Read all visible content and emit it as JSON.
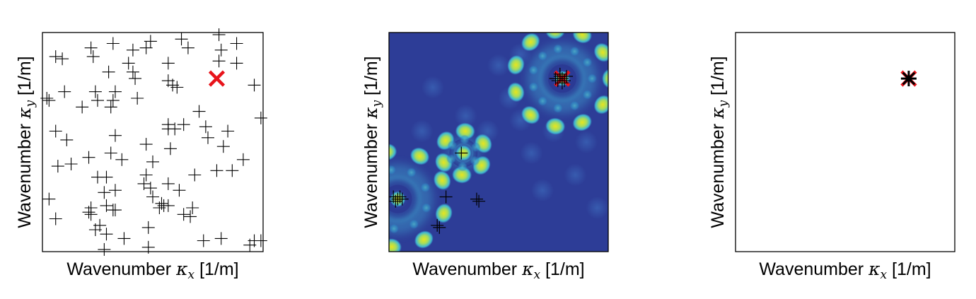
{
  "chart_data": [
    {
      "type": "scatter",
      "xlabel": "Wavenumber κx [1/m]",
      "ylabel": "Wavenumber κy [1/m]",
      "xlabel_parts": {
        "pre": "Wavenumber ",
        "sym": "κ",
        "sub": "x",
        "post": " [1/m]"
      },
      "ylabel_parts": {
        "pre": "Wavenumber ",
        "sym": "κ",
        "sub": "y",
        "post": " [1/m]"
      },
      "xlim": [
        0,
        1
      ],
      "ylim": [
        0,
        1
      ],
      "background": "#ffffff",
      "grid": false,
      "markers": {
        "estimates": {
          "symbol": "plus",
          "color": "#000000"
        },
        "truth": {
          "symbol": "x",
          "color": "#e8141b"
        }
      },
      "truth": [
        {
          "x": 0.79,
          "y": 0.79
        }
      ],
      "estimates": [
        [
          0.06,
          0.89
        ],
        [
          0.09,
          0.88
        ],
        [
          0.22,
          0.93
        ],
        [
          0.23,
          0.89
        ],
        [
          0.32,
          0.95
        ],
        [
          0.41,
          0.92
        ],
        [
          0.47,
          0.93
        ],
        [
          0.49,
          0.96
        ],
        [
          0.63,
          0.97
        ],
        [
          0.66,
          0.93
        ],
        [
          0.8,
          0.99
        ],
        [
          0.81,
          0.92
        ],
        [
          0.88,
          0.95
        ],
        [
          0.8,
          0.87
        ],
        [
          0.88,
          0.86
        ],
        [
          0.39,
          0.86
        ],
        [
          0.41,
          0.82
        ],
        [
          0.42,
          0.79
        ],
        [
          0.57,
          0.86
        ],
        [
          0.57,
          0.78
        ],
        [
          0.59,
          0.76
        ],
        [
          0.61,
          0.75
        ],
        [
          0.96,
          0.76
        ],
        [
          0.3,
          0.82
        ],
        [
          0.24,
          0.73
        ],
        [
          0.33,
          0.73
        ],
        [
          0.25,
          0.69
        ],
        [
          0.32,
          0.69
        ],
        [
          0.43,
          0.7
        ],
        [
          0.1,
          0.73
        ],
        [
          0.03,
          0.69
        ],
        [
          0.02,
          0.7
        ],
        [
          0.18,
          0.66
        ],
        [
          0.31,
          0.66
        ],
        [
          0.71,
          0.64
        ],
        [
          0.99,
          0.61
        ],
        [
          0.57,
          0.58
        ],
        [
          0.57,
          0.56
        ],
        [
          0.6,
          0.56
        ],
        [
          0.64,
          0.58
        ],
        [
          0.74,
          0.57
        ],
        [
          0.06,
          0.55
        ],
        [
          0.11,
          0.51
        ],
        [
          0.33,
          0.53
        ],
        [
          0.47,
          0.49
        ],
        [
          0.58,
          0.47
        ],
        [
          0.84,
          0.55
        ],
        [
          0.75,
          0.52
        ],
        [
          0.82,
          0.48
        ],
        [
          0.31,
          0.45
        ],
        [
          0.21,
          0.43
        ],
        [
          0.36,
          0.42
        ],
        [
          0.5,
          0.41
        ],
        [
          0.13,
          0.4
        ],
        [
          0.07,
          0.39
        ],
        [
          0.91,
          0.42
        ],
        [
          0.86,
          0.37
        ],
        [
          0.79,
          0.37
        ],
        [
          0.69,
          0.35
        ],
        [
          0.25,
          0.34
        ],
        [
          0.29,
          0.34
        ],
        [
          0.47,
          0.35
        ],
        [
          0.46,
          0.31
        ],
        [
          0.49,
          0.29
        ],
        [
          0.28,
          0.27
        ],
        [
          0.33,
          0.28
        ],
        [
          0.57,
          0.31
        ],
        [
          0.62,
          0.28
        ],
        [
          0.5,
          0.25
        ],
        [
          0.54,
          0.22
        ],
        [
          0.53,
          0.2
        ],
        [
          0.55,
          0.21
        ],
        [
          0.57,
          0.21
        ],
        [
          0.68,
          0.2
        ],
        [
          0.22,
          0.17
        ],
        [
          0.33,
          0.19
        ],
        [
          0.22,
          0.2
        ],
        [
          0.03,
          0.24
        ],
        [
          0.21,
          0.18
        ],
        [
          0.29,
          0.21
        ],
        [
          0.32,
          0.19
        ],
        [
          0.64,
          0.17
        ],
        [
          0.67,
          0.16
        ],
        [
          0.06,
          0.15
        ],
        [
          0.26,
          0.12
        ],
        [
          0.48,
          0.11
        ],
        [
          0.29,
          0.08
        ],
        [
          0.24,
          0.1
        ],
        [
          0.37,
          0.06
        ],
        [
          0.81,
          0.06
        ],
        [
          0.73,
          0.05
        ],
        [
          0.94,
          0.03
        ],
        [
          0.99,
          0.05
        ],
        [
          0.96,
          0.05
        ],
        [
          0.28,
          0.01
        ],
        [
          0.48,
          0.02
        ]
      ]
    },
    {
      "type": "heatmap",
      "xlabel": "Wavenumber κx [1/m]",
      "ylabel": "Wavenumber κy [1/m]",
      "xlabel_parts": {
        "pre": "Wavenumber ",
        "sym": "κ",
        "sub": "x",
        "post": " [1/m]"
      },
      "ylabel_parts": {
        "pre": "Wavenumber ",
        "sym": "κ",
        "sub": "y",
        "post": " [1/m]"
      },
      "xlim": [
        0,
        1
      ],
      "ylim": [
        0,
        1
      ],
      "grid": false,
      "colormap": {
        "low": "#2a3a94",
        "mid": "#3fb8d2",
        "high": "#e7e51e"
      },
      "background_color": "#2d3d97",
      "ring_structures": [
        {
          "x": 0.79,
          "y": 0.79,
          "ring_radius": 0.22,
          "lobes": 11,
          "lobe_color": "#e0e22a"
        },
        {
          "x": 0.04,
          "y": 0.24,
          "ring_radius": 0.22,
          "lobes": 9,
          "lobe_color": "#c9e440"
        },
        {
          "x": 0.34,
          "y": 0.45,
          "ring_radius": 0.1,
          "lobes": 6,
          "lobe_color": "#7fd8a9"
        }
      ],
      "truth": [
        {
          "x": 0.79,
          "y": 0.79
        }
      ],
      "estimates": [
        [
          0.79,
          0.79
        ],
        [
          0.78,
          0.8
        ],
        [
          0.8,
          0.78
        ],
        [
          0.77,
          0.78
        ],
        [
          0.81,
          0.8
        ],
        [
          0.79,
          0.77
        ],
        [
          0.78,
          0.81
        ],
        [
          0.76,
          0.79
        ],
        [
          0.04,
          0.24
        ],
        [
          0.05,
          0.25
        ],
        [
          0.03,
          0.23
        ],
        [
          0.06,
          0.24
        ],
        [
          0.02,
          0.25
        ],
        [
          0.33,
          0.45
        ],
        [
          0.26,
          0.25
        ],
        [
          0.4,
          0.24
        ],
        [
          0.41,
          0.23
        ],
        [
          0.22,
          0.12
        ],
        [
          0.23,
          0.11
        ]
      ]
    },
    {
      "type": "scatter",
      "xlabel": "Wavenumber κx [1/m]",
      "ylabel": "Wavenumber κy [1/m]",
      "xlabel_parts": {
        "pre": "Wavenumber ",
        "sym": "κ",
        "sub": "x",
        "post": " [1/m]"
      },
      "ylabel_parts": {
        "pre": "Wavenumber ",
        "sym": "κ",
        "sub": "y",
        "post": " [1/m]"
      },
      "xlim": [
        0,
        1
      ],
      "ylim": [
        0,
        1
      ],
      "background": "#ffffff",
      "grid": false,
      "truth": [
        {
          "x": 0.79,
          "y": 0.79
        }
      ],
      "estimates": [
        [
          0.79,
          0.79
        ]
      ]
    }
  ]
}
